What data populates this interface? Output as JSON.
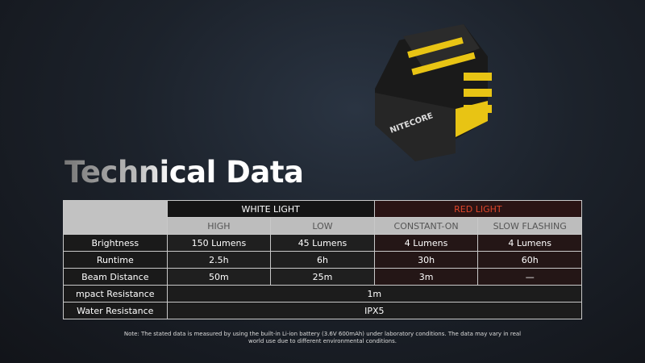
{
  "title": {
    "part1": "Techni",
    "part2": "cal Data"
  },
  "product": {
    "brand_logo": "NITECORE"
  },
  "table": {
    "groups": [
      {
        "label": "WHITE LIGHT",
        "color": "#ffffff"
      },
      {
        "label": "RED LIGHT",
        "color": "#e0452a"
      }
    ],
    "modes": [
      "HIGH",
      "LOW",
      "CONSTANT-ON",
      "SLOW FLASHING"
    ],
    "rows": [
      {
        "label": "Brightness",
        "values": [
          "150 Lumens",
          "45 Lumens",
          "4 Lumens",
          "4 Lumens"
        ]
      },
      {
        "label": "Runtime",
        "values": [
          "2.5h",
          "6h",
          "30h",
          "60h"
        ]
      },
      {
        "label": "Beam Distance",
        "values": [
          "50m",
          "25m",
          "3m",
          "—"
        ]
      }
    ],
    "merged_rows": [
      {
        "label": "mpact Resistance",
        "value": "1m"
      },
      {
        "label": "Water Resistance",
        "value": "IPX5"
      }
    ]
  },
  "note": "Note: The stated data is measured by using the built-in Li-ion battery (3.6V 600mAh) under laboratory conditions. The data may vary in real world use due to different environmental conditions."
}
